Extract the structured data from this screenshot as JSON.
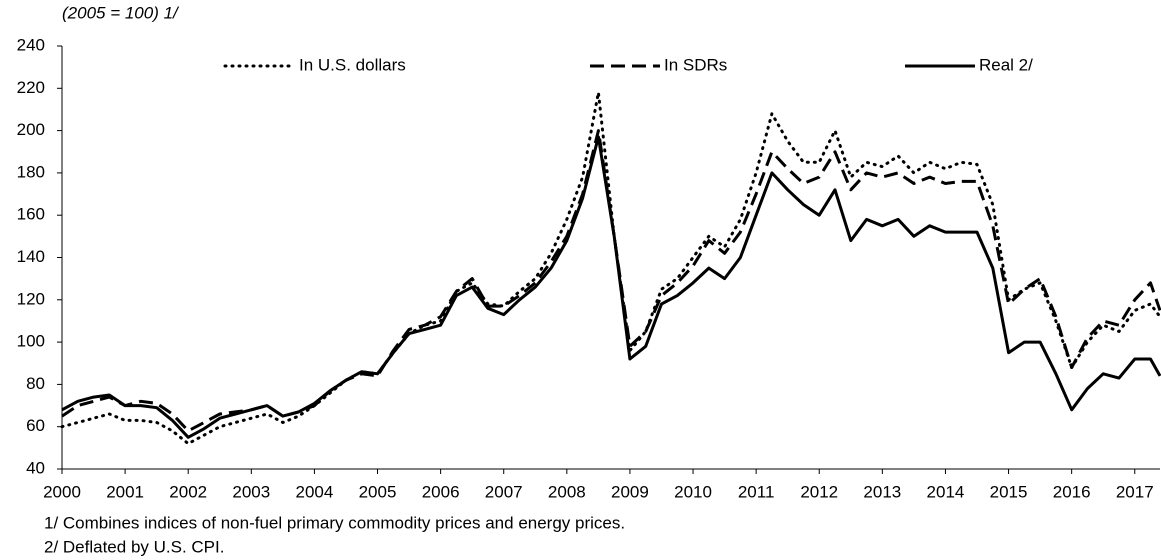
{
  "chart_data": {
    "type": "line",
    "title": "(2005 = 100) 1/",
    "x": [
      2000,
      2000.25,
      2000.5,
      2000.75,
      2001,
      2001.25,
      2001.5,
      2001.75,
      2002,
      2002.25,
      2002.5,
      2002.75,
      2003,
      2003.25,
      2003.5,
      2003.75,
      2004,
      2004.25,
      2004.5,
      2004.75,
      2005,
      2005.25,
      2005.5,
      2005.75,
      2006,
      2006.25,
      2006.5,
      2006.75,
      2007,
      2007.25,
      2007.5,
      2007.75,
      2008,
      2008.25,
      2008.5,
      2008.75,
      2009,
      2009.25,
      2009.5,
      2009.75,
      2010,
      2010.25,
      2010.5,
      2010.75,
      2011,
      2011.25,
      2011.5,
      2011.75,
      2012,
      2012.25,
      2012.5,
      2012.75,
      2013,
      2013.25,
      2013.5,
      2013.75,
      2014,
      2014.25,
      2014.5,
      2014.75,
      2015,
      2015.25,
      2015.5,
      2015.75,
      2016,
      2016.25,
      2016.5,
      2016.75,
      2017,
      2017.25,
      2017.4
    ],
    "series": [
      {
        "name": "In U.S. dollars",
        "color": "#000000",
        "style": "dotted",
        "values": [
          60,
          62,
          64,
          66,
          63,
          63,
          62,
          58,
          52,
          56,
          60,
          62,
          64,
          66,
          62,
          65,
          70,
          76,
          82,
          86,
          85,
          95,
          104,
          108,
          110,
          124,
          128,
          118,
          117,
          124,
          130,
          142,
          158,
          178,
          218,
          150,
          96,
          105,
          125,
          130,
          140,
          150,
          145,
          158,
          180,
          208,
          195,
          185,
          185,
          200,
          178,
          185,
          183,
          188,
          180,
          185,
          182,
          185,
          184,
          165,
          120,
          125,
          128,
          110,
          88,
          100,
          108,
          105,
          115,
          118,
          112
        ]
      },
      {
        "name": "In SDRs",
        "color": "#000000",
        "style": "dashed",
        "values": [
          65,
          70,
          72,
          74,
          70,
          72,
          71,
          66,
          58,
          62,
          66,
          67,
          68,
          70,
          65,
          67,
          70,
          77,
          82,
          85,
          84,
          96,
          106,
          108,
          112,
          124,
          130,
          117,
          117,
          122,
          128,
          138,
          150,
          170,
          200,
          150,
          98,
          105,
          122,
          128,
          136,
          148,
          142,
          152,
          170,
          190,
          182,
          175,
          178,
          190,
          172,
          180,
          178,
          180,
          175,
          178,
          175,
          176,
          176,
          155,
          118,
          125,
          130,
          112,
          88,
          102,
          110,
          108,
          120,
          128,
          115
        ]
      },
      {
        "name": "Real 2/",
        "color": "#000000",
        "style": "solid",
        "values": [
          68,
          72,
          74,
          75,
          70,
          70,
          69,
          63,
          55,
          59,
          64,
          66,
          68,
          70,
          65,
          67,
          71,
          77,
          82,
          86,
          85,
          95,
          104,
          106,
          108,
          122,
          126,
          116,
          113,
          120,
          126,
          135,
          148,
          168,
          197,
          150,
          92,
          98,
          118,
          122,
          128,
          135,
          130,
          140,
          160,
          180,
          172,
          165,
          160,
          172,
          148,
          158,
          155,
          158,
          150,
          155,
          152,
          152,
          152,
          135,
          95,
          100,
          100,
          85,
          68,
          78,
          85,
          83,
          92,
          92,
          84
        ]
      }
    ],
    "xlim": [
      2000,
      2017.4
    ],
    "xticks": [
      2000,
      2001,
      2002,
      2003,
      2004,
      2005,
      2006,
      2007,
      2008,
      2009,
      2010,
      2011,
      2012,
      2013,
      2014,
      2015,
      2016,
      2017
    ],
    "ylim": [
      40,
      240
    ],
    "yticks": [
      40,
      60,
      80,
      100,
      120,
      140,
      160,
      180,
      200,
      220,
      240
    ],
    "notes": [
      "1/ Combines indices of non-fuel primary commodity prices and energy prices.",
      "2/ Deflated by U.S. CPI."
    ]
  }
}
